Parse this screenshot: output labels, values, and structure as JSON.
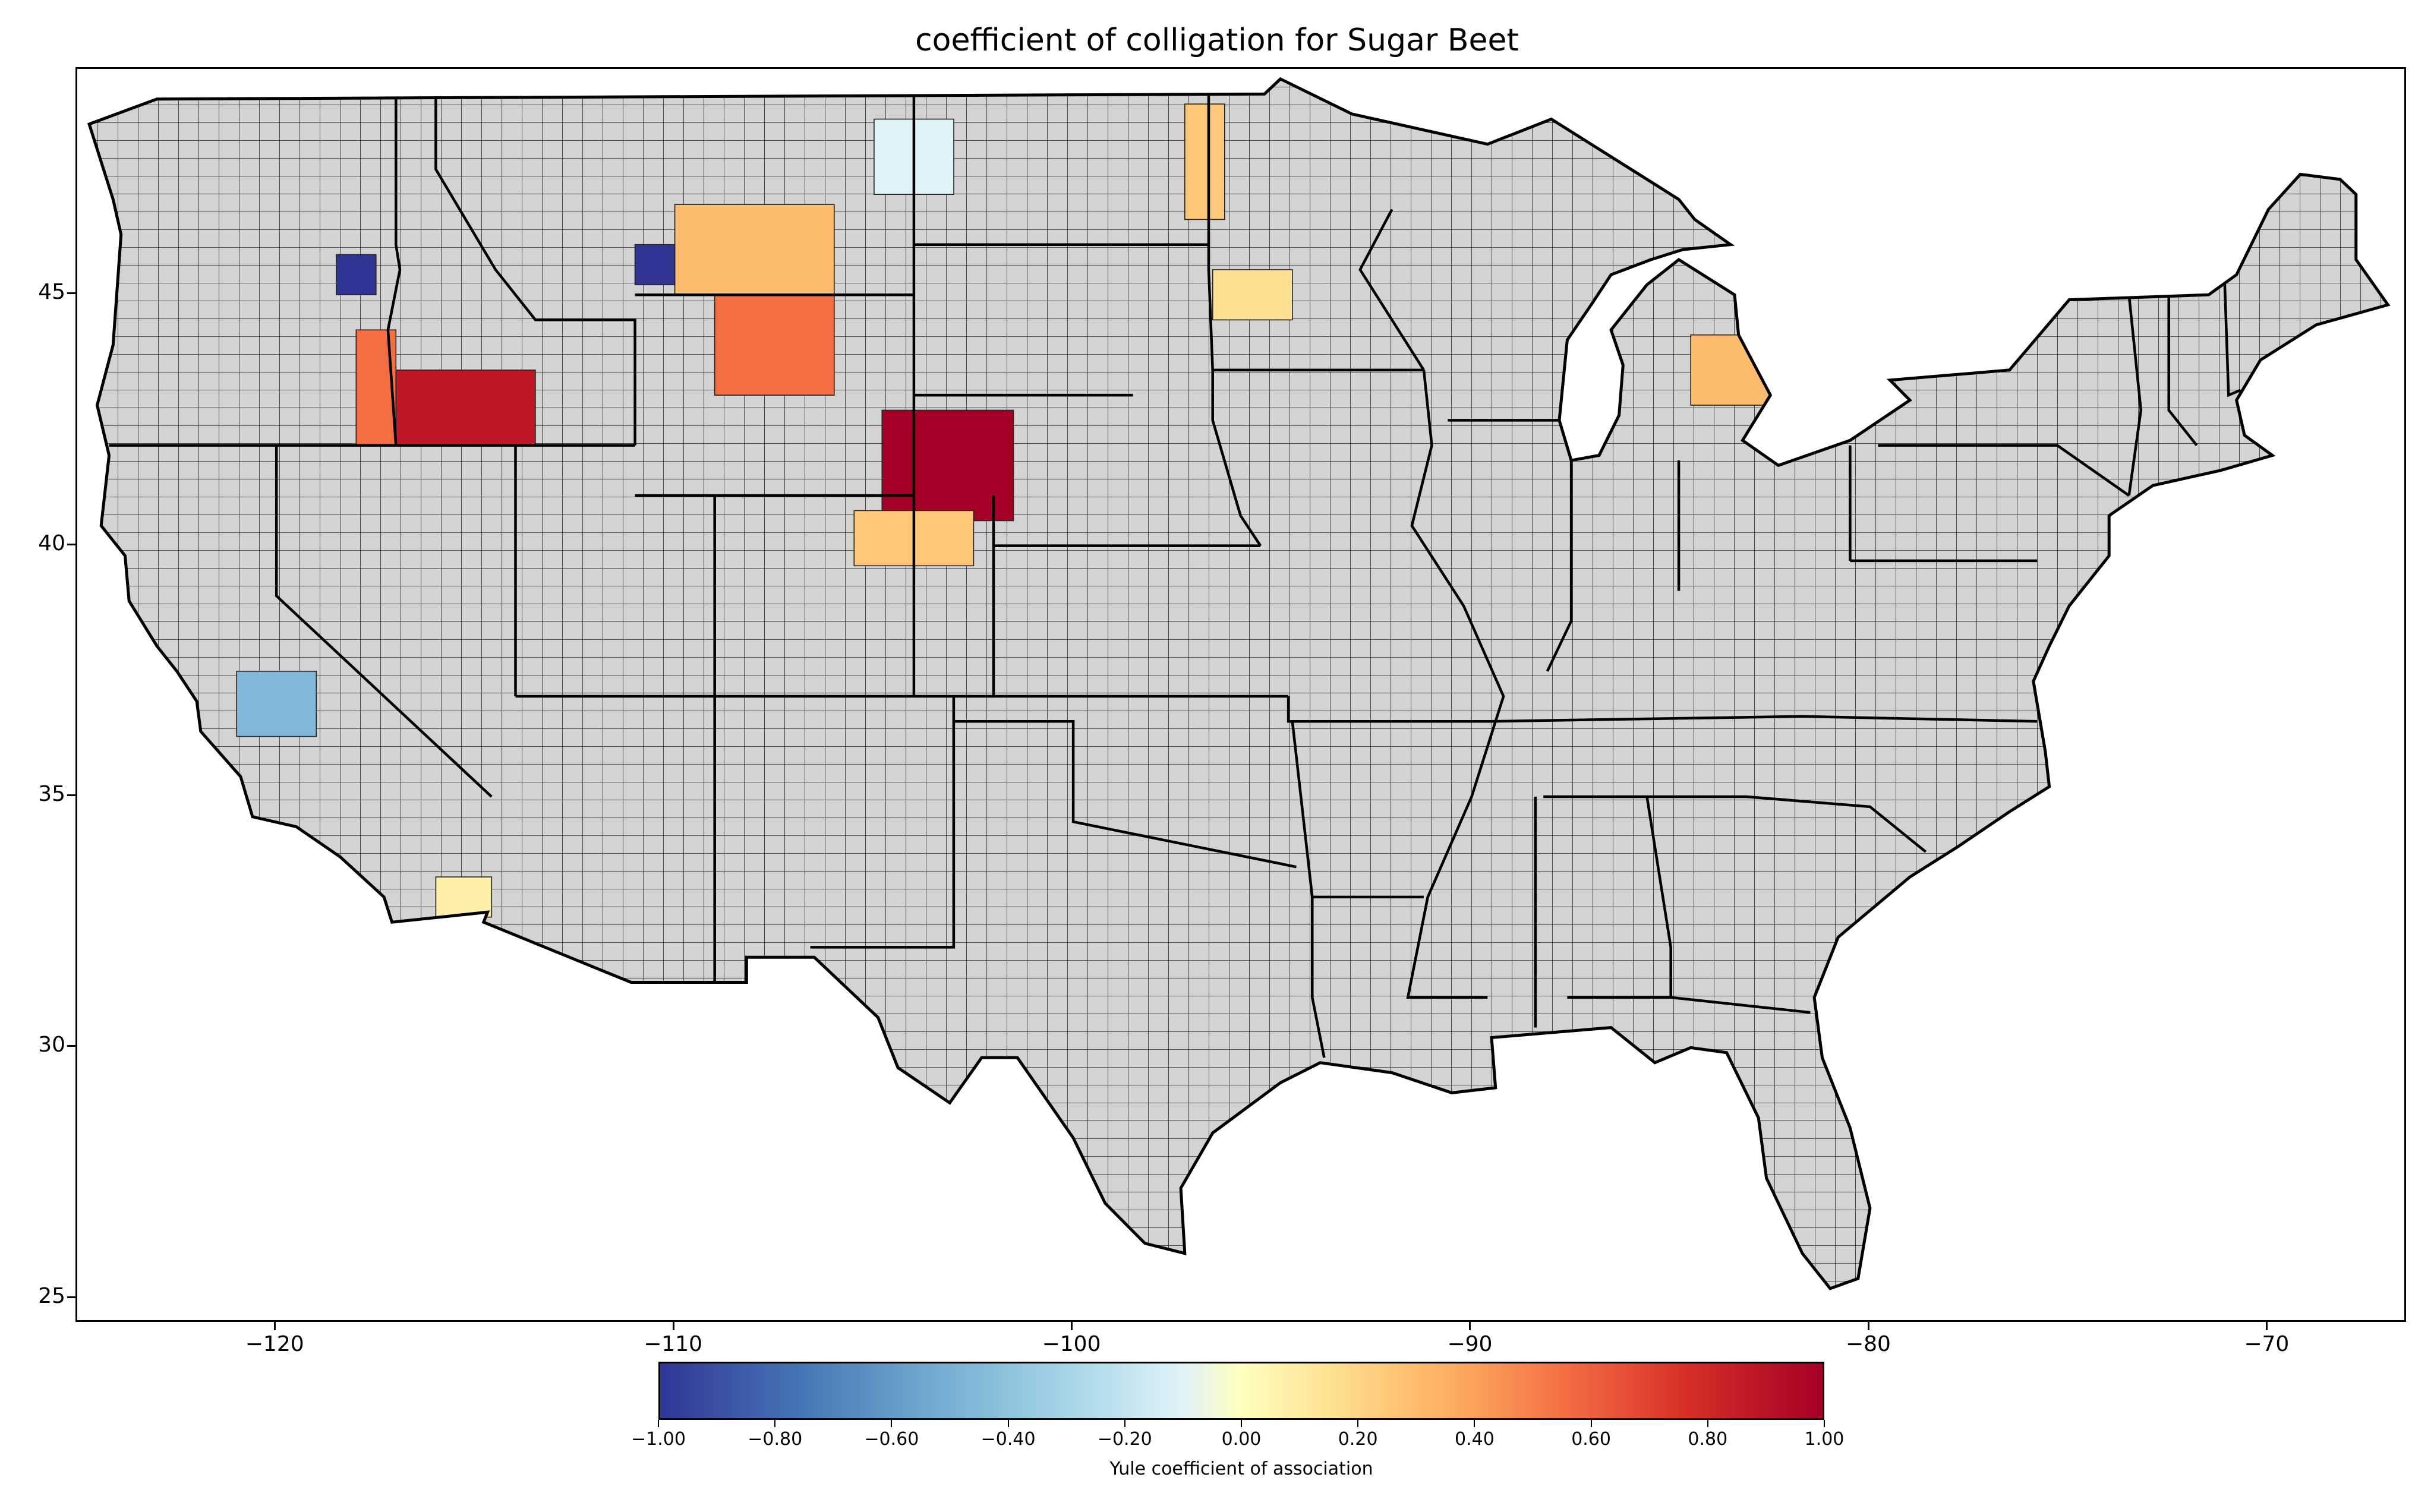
{
  "map": {
    "title": "coefficient of colligation for Sugar Beet",
    "colorbar_label": "Yule coefficient of association",
    "lon_range": [
      -125,
      -66.5
    ],
    "lat_range": [
      24.5,
      49.5
    ],
    "x_ticks": [
      {
        "value": -120,
        "label": "−120"
      },
      {
        "value": -110,
        "label": "−110"
      },
      {
        "value": -100,
        "label": "−100"
      },
      {
        "value": -90,
        "label": "−90"
      },
      {
        "value": -80,
        "label": "−80"
      },
      {
        "value": -70,
        "label": "−70"
      }
    ],
    "y_ticks": [
      {
        "value": 45,
        "label": "45"
      },
      {
        "value": 40,
        "label": "40"
      },
      {
        "value": 35,
        "label": "35"
      },
      {
        "value": 30,
        "label": "30"
      },
      {
        "value": 25,
        "label": "25"
      }
    ],
    "colorbar": {
      "range": [
        -1.0,
        1.0
      ],
      "colormap": "RdYlBu_r",
      "ticks": [
        {
          "value": -1.0,
          "label": "−1.00"
        },
        {
          "value": -0.8,
          "label": "−0.80"
        },
        {
          "value": -0.6,
          "label": "−0.60"
        },
        {
          "value": -0.4,
          "label": "−0.40"
        },
        {
          "value": -0.2,
          "label": "−0.20"
        },
        {
          "value": 0.0,
          "label": "0.00"
        },
        {
          "value": 0.2,
          "label": "0.20"
        },
        {
          "value": 0.4,
          "label": "0.40"
        },
        {
          "value": 0.6,
          "label": "0.60"
        },
        {
          "value": 0.8,
          "label": "0.80"
        },
        {
          "value": 1.0,
          "label": "1.00"
        }
      ]
    },
    "no_data_color": "#d3d3d3",
    "highlighted_regions": [
      {
        "region": "Red River Valley MN/ND",
        "lon": [
          -97.2,
          -96.2
        ],
        "lat": [
          46.5,
          48.8
        ],
        "value": 0.3
      },
      {
        "region": "SE Wyoming / W Nebraska",
        "lon": [
          -104.8,
          -101.5
        ],
        "lat": [
          40.5,
          42.7
        ],
        "value": 1.0
      },
      {
        "region": "NE Colorado",
        "lon": [
          -105.5,
          -102.5
        ],
        "lat": [
          39.6,
          40.7
        ],
        "value": 0.3
      },
      {
        "region": "Big Horn Basin WY",
        "lon": [
          -109.0,
          -106.0
        ],
        "lat": [
          43.0,
          45.0
        ],
        "value": 0.6
      },
      {
        "region": "Snake River ID",
        "lon": [
          -117.0,
          -113.5
        ],
        "lat": [
          42.0,
          43.5
        ],
        "value": 0.9
      },
      {
        "region": "SE Oregon",
        "lon": [
          -118.0,
          -117.0
        ],
        "lat": [
          42.0,
          44.3
        ],
        "value": 0.6
      },
      {
        "region": "Thumb of Michigan",
        "lon": [
          -84.5,
          -82.5
        ],
        "lat": [
          42.8,
          44.2
        ],
        "value": 0.35
      },
      {
        "region": "S Montana",
        "lon": [
          -110.0,
          -106.0
        ],
        "lat": [
          45.0,
          46.8
        ],
        "value": 0.35
      },
      {
        "region": "Central California",
        "lon": [
          -121.0,
          -119.0
        ],
        "lat": [
          36.2,
          37.5
        ],
        "value": -0.55
      },
      {
        "region": "Central Minnesota",
        "lon": [
          -96.5,
          -94.5
        ],
        "lat": [
          44.5,
          45.5
        ],
        "value": 0.2
      },
      {
        "region": "NE Montana",
        "lon": [
          -105.0,
          -103.0
        ],
        "lat": [
          47.0,
          48.5
        ],
        "value": -0.2
      },
      {
        "region": "Imperial Valley CA",
        "lon": [
          -116.0,
          -114.6
        ],
        "lat": [
          32.6,
          33.4
        ],
        "value": 0.1
      },
      {
        "region": "NE Oregon",
        "lon": [
          -118.5,
          -117.5
        ],
        "lat": [
          45.0,
          45.8
        ],
        "value": -1.0
      },
      {
        "region": "Montana southwest",
        "lon": [
          -111.0,
          -110.0
        ],
        "lat": [
          45.2,
          46.0
        ],
        "value": -1.0
      }
    ]
  }
}
